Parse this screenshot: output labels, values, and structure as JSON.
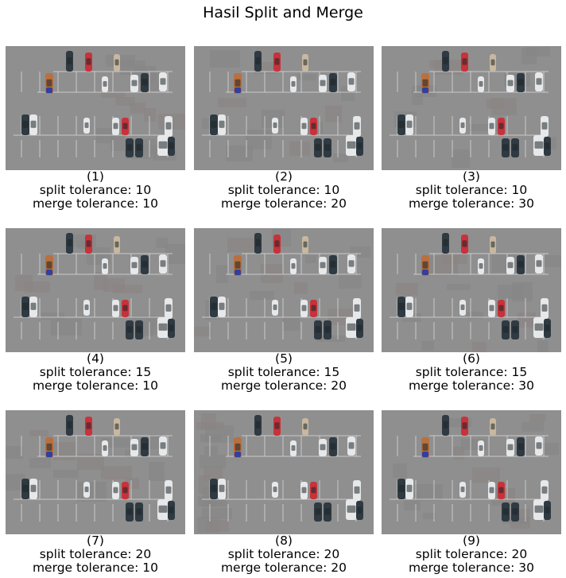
{
  "figure": {
    "title": "Hasil Split and Merge"
  },
  "panels": [
    {
      "index": "(1)",
      "split_label": "split tolerance: 10",
      "merge_label": "merge tolerance: 10",
      "split": 10,
      "merge": 10
    },
    {
      "index": "(2)",
      "split_label": "split tolerance: 10",
      "merge_label": "merge tolerance: 20",
      "split": 10,
      "merge": 20
    },
    {
      "index": "(3)",
      "split_label": "split tolerance: 10",
      "merge_label": "merge tolerance: 30",
      "split": 10,
      "merge": 30
    },
    {
      "index": "(4)",
      "split_label": "split tolerance: 15",
      "merge_label": "merge tolerance: 10",
      "split": 15,
      "merge": 10
    },
    {
      "index": "(5)",
      "split_label": "split tolerance: 15",
      "merge_label": "merge tolerance: 20",
      "split": 15,
      "merge": 20
    },
    {
      "index": "(6)",
      "split_label": "split tolerance: 15",
      "merge_label": "merge tolerance: 30",
      "split": 15,
      "merge": 30
    },
    {
      "index": "(7)",
      "split_label": "split tolerance: 20",
      "merge_label": "merge tolerance: 10",
      "split": 20,
      "merge": 10
    },
    {
      "index": "(8)",
      "split_label": "split tolerance: 20",
      "merge_label": "merge tolerance: 20",
      "split": 20,
      "merge": 20
    },
    {
      "index": "(9)",
      "split_label": "split tolerance: 20",
      "merge_label": "merge tolerance: 30",
      "split": 20,
      "merge": 30
    }
  ],
  "colors": {
    "asphalt": "#8f8f8f",
    "asphalt_patch_dark": "#858585",
    "asphalt_patch_warm": "#8a8382",
    "line_marking": "#d8d8d8",
    "car_dark": "#2f3a42",
    "car_red": "#c8323a",
    "car_white": "#e6e8ea",
    "car_beige": "#c8b8a0",
    "car_orange": "#b87040",
    "car_blue": "#3040a0"
  }
}
